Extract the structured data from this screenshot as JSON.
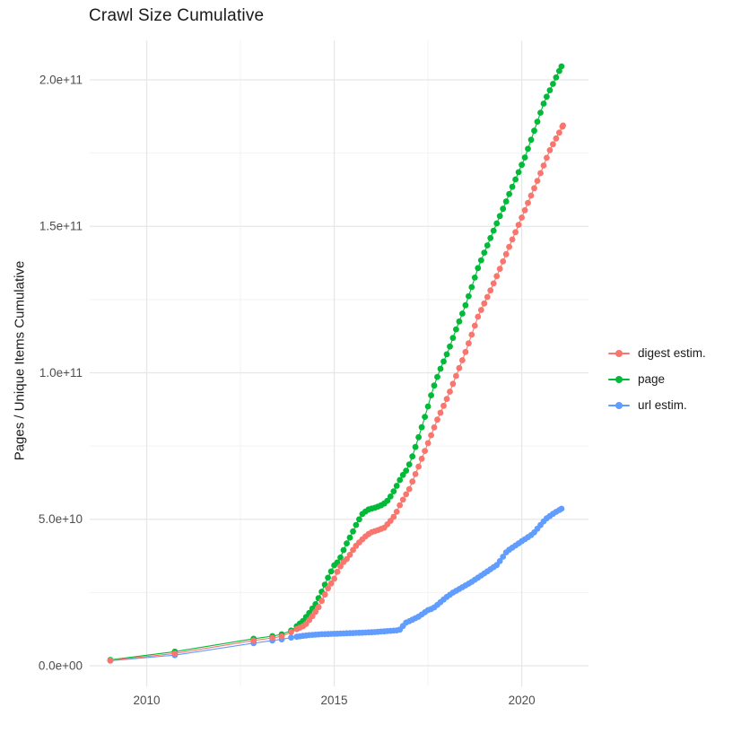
{
  "chart_data": {
    "type": "line",
    "title": "Crawl Size Cumulative",
    "xlabel": "",
    "ylabel": "Pages / Unique Items Cumulative",
    "legend_position": "right",
    "grid": true,
    "xlim": [
      2008.48,
      2021.78
    ],
    "ylim": [
      -7050000000,
      213470000000
    ],
    "x_tick_values": [
      2010,
      2015,
      2020
    ],
    "x_tick_labels": [
      "2010",
      "2015",
      "2020"
    ],
    "x_minor_ticks": [
      2012.5,
      2017.5
    ],
    "y_tick_values": [
      0,
      50000000000,
      100000000000,
      150000000000,
      200000000000
    ],
    "y_tick_labels": [
      "0.0e+00",
      "5.0e+10",
      "1.0e+11",
      "1.5e+11",
      "2.0e+11"
    ],
    "y_minor_ticks": [
      25000000000,
      75000000000,
      125000000000,
      175000000000
    ],
    "dot_years_sparse": [
      2009.03,
      2010.75,
      2012.85,
      2013.35,
      2013.6,
      2013.85
    ],
    "dense_start": 2014.0,
    "dense_step_years": 0.08333,
    "series": [
      {
        "name": "digest estim.",
        "color": "#F8766D",
        "z": 3,
        "points": [
          [
            2009.03,
            1800000000.0
          ],
          [
            2010.75,
            4200000000.0
          ],
          [
            2012.85,
            8600000000.0
          ],
          [
            2013.35,
            9500000000.0
          ],
          [
            2013.6,
            10000000000.0
          ],
          [
            2013.85,
            11500000000.0
          ],
          [
            2014.0,
            12500000000.0
          ],
          [
            2014.22,
            13800000000.0
          ],
          [
            2014.41,
            16800000000.0
          ],
          [
            2014.58,
            19900000000.0
          ],
          [
            2014.7,
            23000000000.0
          ],
          [
            2014.84,
            26600000000.0
          ],
          [
            2015.0,
            29700000000.0
          ],
          [
            2015.11,
            32800000000.0
          ],
          [
            2015.23,
            35200000000.0
          ],
          [
            2015.35,
            36600000000.0
          ],
          [
            2015.45,
            38500000000.0
          ],
          [
            2015.55,
            40500000000.0
          ],
          [
            2015.66,
            42000000000.0
          ],
          [
            2015.8,
            43800000000.0
          ],
          [
            2015.92,
            45000000000.0
          ],
          [
            2016.0,
            45600000000.0
          ],
          [
            2016.15,
            46200000000.0
          ],
          [
            2016.33,
            47100000000.0
          ],
          [
            2016.45,
            48700000000.0
          ],
          [
            2016.55,
            50200000000.0
          ],
          [
            2016.65,
            52100000000.0
          ],
          [
            2016.75,
            54800000000.0
          ],
          [
            2016.86,
            57300000000.0
          ],
          [
            2017.0,
            60300000000.0
          ],
          [
            2017.25,
            68000000000.0
          ],
          [
            2017.5,
            76000000000.0
          ],
          [
            2017.75,
            84000000000.0
          ],
          [
            2018.05,
            92500000000.0
          ],
          [
            2018.24,
            98600000000.0
          ],
          [
            2018.46,
            105700000000.0
          ],
          [
            2018.65,
            112400000000.0
          ],
          [
            2018.84,
            119400000000.0
          ],
          [
            2019.2,
            129000000000.0
          ],
          [
            2019.6,
            141000000000.0
          ],
          [
            2020.0,
            153000000000.0
          ],
          [
            2020.4,
            165000000000.0
          ],
          [
            2020.75,
            176000000000.0
          ],
          [
            2021.1,
            184400000000.0
          ]
        ]
      },
      {
        "name": "page",
        "color": "#00BA38",
        "z": 2,
        "points": [
          [
            2009.03,
            2000000000.0
          ],
          [
            2010.75,
            4800000000.0
          ],
          [
            2012.85,
            9200000000.0
          ],
          [
            2013.35,
            10100000000.0
          ],
          [
            2013.6,
            10700000000.0
          ],
          [
            2013.85,
            12000000000.0
          ],
          [
            2014.0,
            13500000000.0
          ],
          [
            2014.17,
            15300000000.0
          ],
          [
            2014.34,
            18100000000.0
          ],
          [
            2014.5,
            21000000000.0
          ],
          [
            2014.63,
            24200000000.0
          ],
          [
            2014.82,
            29700000000.0
          ],
          [
            2015.0,
            34300000000.0
          ],
          [
            2015.13,
            35800000000.0
          ],
          [
            2015.3,
            41000000000.0
          ],
          [
            2015.45,
            44500000000.0
          ],
          [
            2015.6,
            48500000000.0
          ],
          [
            2015.75,
            51800000000.0
          ],
          [
            2015.9,
            53300000000.0
          ],
          [
            2016.1,
            54000000000.0
          ],
          [
            2016.3,
            55000000000.0
          ],
          [
            2016.45,
            56700000000.0
          ],
          [
            2016.55,
            58800000000.0
          ],
          [
            2016.65,
            61000000000.0
          ],
          [
            2016.75,
            63400000000.0
          ],
          [
            2016.85,
            65500000000.0
          ],
          [
            2016.95,
            67100000000.0
          ],
          [
            2017.1,
            72000000000.0
          ],
          [
            2017.3,
            80000000000.0
          ],
          [
            2017.5,
            88500000000.0
          ],
          [
            2017.62,
            94000000000.0
          ],
          [
            2017.81,
            100700000000.0
          ],
          [
            2018.05,
            107800000000.0
          ],
          [
            2018.24,
            114500000000.0
          ],
          [
            2018.46,
            121600000000.0
          ],
          [
            2018.65,
            128600000000.0
          ],
          [
            2018.84,
            136000000000.0
          ],
          [
            2019.0,
            141000000000.0
          ],
          [
            2019.3,
            150000000000.0
          ],
          [
            2019.7,
            162000000000.0
          ],
          [
            2020.1,
            174000000000.0
          ],
          [
            2020.6,
            192500000000.0
          ],
          [
            2021.06,
            204600000000.0
          ]
        ]
      },
      {
        "name": "url estim.",
        "color": "#619CFF",
        "z": 1,
        "points": [
          [
            2009.03,
            1700000000.0
          ],
          [
            2010.75,
            3600000000.0
          ],
          [
            2012.85,
            7700000000.0
          ],
          [
            2013.35,
            8600000000.0
          ],
          [
            2013.6,
            9000000000.0
          ],
          [
            2013.85,
            9600000000.0
          ],
          [
            2014.05,
            10000000000.0
          ],
          [
            2014.3,
            10400000000.0
          ],
          [
            2014.6,
            10700000000.0
          ],
          [
            2015.0,
            10900000000.0
          ],
          [
            2015.4,
            11100000000.0
          ],
          [
            2015.8,
            11300000000.0
          ],
          [
            2016.1,
            11500000000.0
          ],
          [
            2016.4,
            11800000000.0
          ],
          [
            2016.7,
            12100000000.0
          ],
          [
            2016.78,
            12500000000.0
          ],
          [
            2016.88,
            14500000000.0
          ],
          [
            2017.0,
            15200000000.0
          ],
          [
            2017.26,
            16800000000.0
          ],
          [
            2017.5,
            19000000000.0
          ],
          [
            2017.64,
            19600000000.0
          ],
          [
            2018.0,
            23500000000.0
          ],
          [
            2018.17,
            25000000000.0
          ],
          [
            2018.65,
            28500000000.0
          ],
          [
            2019.0,
            31500000000.0
          ],
          [
            2019.35,
            34500000000.0
          ],
          [
            2019.6,
            39000000000.0
          ],
          [
            2020.0,
            42500000000.0
          ],
          [
            2020.3,
            45000000000.0
          ],
          [
            2020.63,
            50000000000.0
          ],
          [
            2020.85,
            52000000000.0
          ],
          [
            2021.06,
            53600000000.0
          ]
        ]
      }
    ],
    "theme": {
      "background": "#ffffff",
      "grid_major": "#e7e7e7",
      "grid_minor": "#f2f2f2",
      "axis_text": "#4d4d4d",
      "title_text": "#1a1a1a"
    }
  }
}
